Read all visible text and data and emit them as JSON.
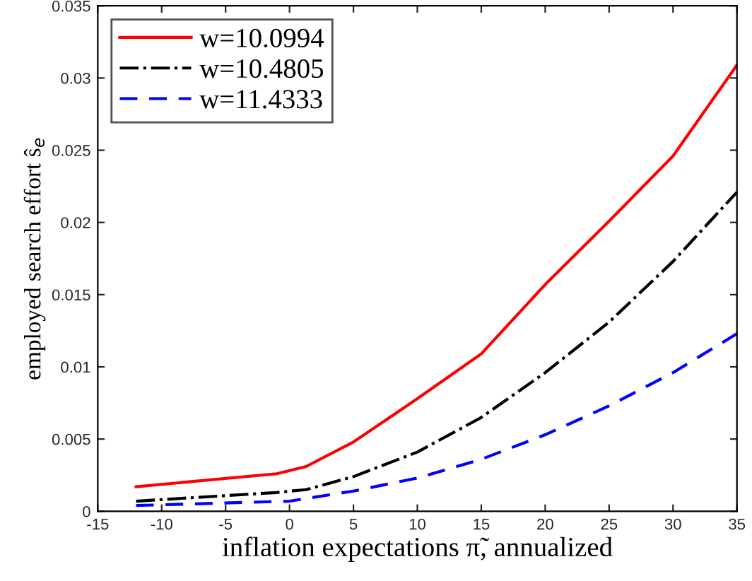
{
  "chart_data": {
    "type": "line",
    "xlabel": "inflation expectations π̃, annualized",
    "ylabel": "employed search effort ŝ$_{e}$",
    "xlim": [
      -15,
      35
    ],
    "xticks": [
      -15,
      -10,
      -5,
      0,
      5,
      10,
      15,
      20,
      25,
      30,
      35
    ],
    "ylim": [
      0,
      0.035
    ],
    "yticks": [
      0,
      0.005,
      0.01,
      0.015,
      0.02,
      0.025,
      0.03,
      0.035
    ],
    "grid": false,
    "legend": "top left",
    "marker": "none",
    "series": [
      {
        "name": "w=10.0994",
        "color": "#ff0000",
        "line_style": "solid",
        "x": [
          -12,
          -1,
          1.3,
          5,
          10,
          15,
          20,
          25,
          30,
          35
        ],
        "values": [
          0.0017,
          0.0026,
          0.0031,
          0.0048,
          0.0078,
          0.0109,
          0.0157,
          0.0201,
          0.0246,
          0.0309
        ]
      },
      {
        "name": "w=10.4805",
        "color": "#000000",
        "line_style": "dashdot",
        "x": [
          -12,
          -1,
          1.3,
          5,
          10,
          15,
          20,
          25,
          30,
          35
        ],
        "values": [
          0.0007,
          0.0013,
          0.0015,
          0.0024,
          0.0041,
          0.0065,
          0.0096,
          0.0131,
          0.0173,
          0.0221
        ]
      },
      {
        "name": "w=11.4333",
        "color": "#0000ff",
        "line_style": "dashed",
        "x": [
          -12,
          0,
          5,
          10,
          15,
          20,
          25,
          30,
          35
        ],
        "values": [
          0.0004,
          0.0007,
          0.0014,
          0.0023,
          0.0036,
          0.0053,
          0.0073,
          0.0096,
          0.0123
        ]
      }
    ]
  }
}
